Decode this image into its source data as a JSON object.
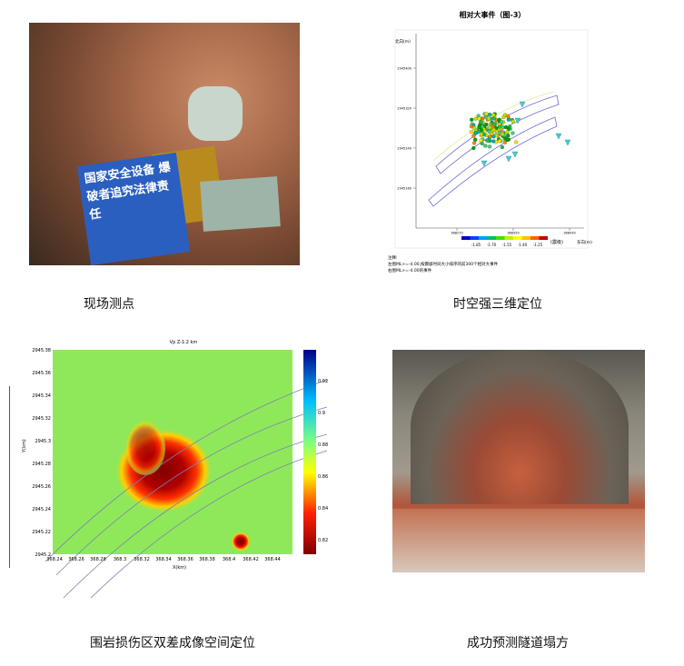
{
  "panels": {
    "p1": {
      "caption": "现场测点",
      "sign_text": "国家安全设备 爆破者追究法律责任"
    },
    "p2": {
      "caption": "时空强三维定位"
    },
    "p3": {
      "caption": "围岩损伤区双差成像空间定位"
    },
    "p4": {
      "caption": "成功预测隧道塌方"
    }
  },
  "chart_data": [
    {
      "type": "scatter",
      "title": "相对大事件（图-3）",
      "ylabel": "北向(m)",
      "xlabel": "东向(m)",
      "yticks": [
        "2945400",
        "2945320",
        "2945240",
        "2945160"
      ],
      "xticks": [
        "368270",
        "368350",
        "368430"
      ],
      "colorbar": {
        "label": "(震级)",
        "ticks": [
          "-1.85",
          "-1.70",
          "-1.55",
          "-1.40",
          "-1.25"
        ],
        "colors": [
          "#0000c0",
          "#00c000",
          "#ffff00",
          "#ff8000",
          "#a00000"
        ]
      },
      "notes": [
        "注释:",
        "左图ML>=-4.00,按震级时间大小排序的前300个相对大事件",
        "右图ML>=-4.00的事件"
      ]
    },
    {
      "type": "heatmap",
      "title": "Vp Z-1.2 km",
      "ylabel": "Y(km)",
      "xlabel": "X(km)",
      "yticks": [
        "2945.38",
        "2945.36",
        "2945.34",
        "2945.32",
        "2945.3",
        "2945.28",
        "2945.26",
        "2945.24",
        "2945.22",
        "2945.2"
      ],
      "xticks": [
        "368.24",
        "368.26",
        "368.28",
        "368.3",
        "368.32",
        "368.34",
        "368.36",
        "368.38",
        "368.4",
        "368.42",
        "368.44"
      ],
      "colorbar": {
        "ticks": [
          "0.92",
          "0.9",
          "0.88",
          "0.86",
          "0.84",
          "0.82"
        ],
        "colors": [
          "#00008b",
          "#00bfff",
          "#7fff7f",
          "#ffff00",
          "#ff4000",
          "#800000"
        ]
      },
      "background_color": "#8fe85a"
    }
  ]
}
